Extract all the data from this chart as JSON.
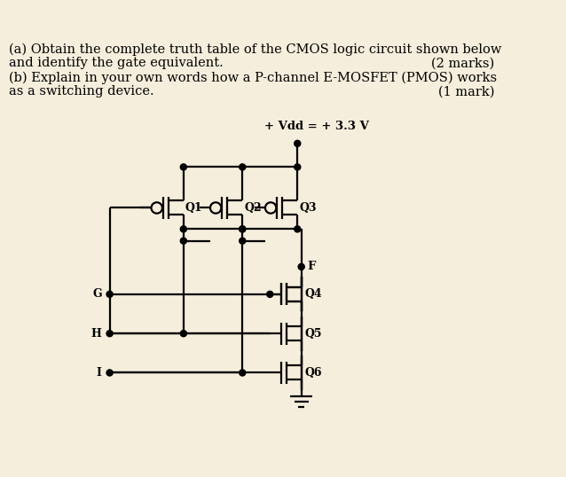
{
  "bg_color": "#f5eedc",
  "text_color": "#000000",
  "line_color": "#000000",
  "line1": "(a) Obtain the complete truth table of the CMOS logic circuit shown below",
  "line2a": "and identify the gate equivalent.",
  "line2b": "(2 marks)",
  "line3": "(b) Explain in your own words how a P-channel E-MOSFET (PMOS) works",
  "line4a": "as a switching device.",
  "line4b": "(1 mark)",
  "vdd_label": "+ Vdd = + 3.3 V",
  "font_size_text": 10.5,
  "font_size_label": 9,
  "font_size_small": 8.5
}
